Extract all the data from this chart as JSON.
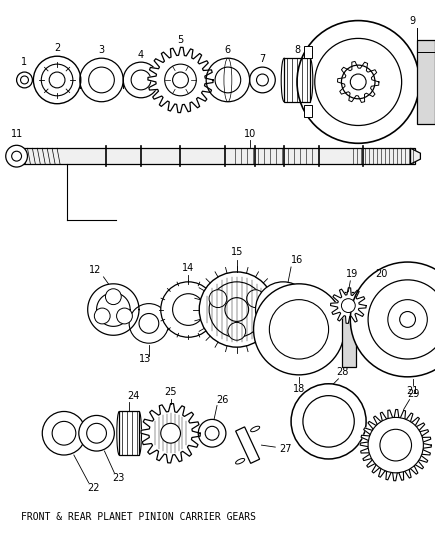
{
  "title": "FRONT & REAR PLANET PINION CARRIER GEARS",
  "background_color": "#ffffff",
  "line_color": "#000000",
  "gray_fill": "#d8d8d8",
  "light_fill": "#f0f0f0"
}
